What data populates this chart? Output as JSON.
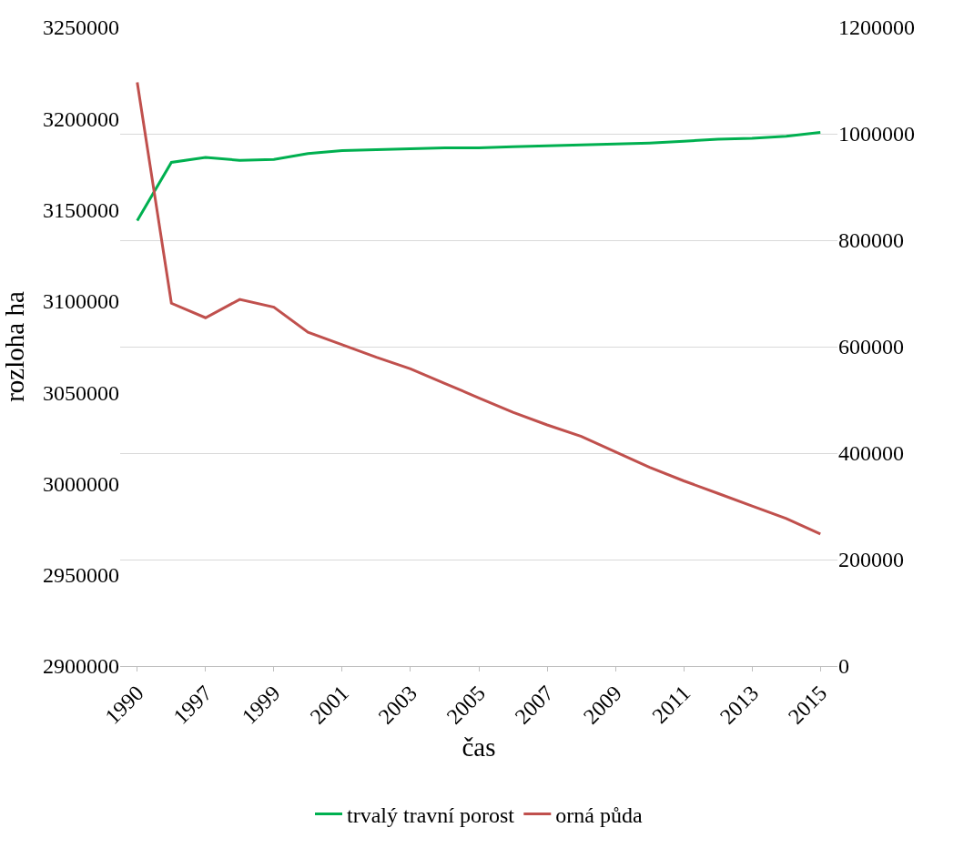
{
  "chart_data": {
    "type": "line",
    "xlabel": "čas",
    "ylabel": "rozloha ha",
    "categories": [
      "1990",
      null,
      "1997",
      null,
      "1999",
      null,
      "2001",
      null,
      "2003",
      null,
      "2005",
      null,
      "2007",
      null,
      "2009",
      null,
      "2011",
      null,
      "2013",
      null,
      "2015"
    ],
    "series": [
      {
        "name": "trvalý travní porost",
        "color": "#00b050",
        "values": [
          3144000,
          3176000,
          3178700,
          3177100,
          3177600,
          3180800,
          3182400,
          3182900,
          3183400,
          3184000,
          3184000,
          3184500,
          3185000,
          3185500,
          3186000,
          3186600,
          3187600,
          3188700,
          3189200,
          3190300,
          3192400
        ]
      },
      {
        "name": "orná půda",
        "color": "#c0504d",
        "axis": "y2",
        "values": [
          1096700,
          681500,
          654300,
          688700,
          674200,
          627100,
          603500,
          580000,
          558200,
          531000,
          503800,
          476600,
          453000,
          431300,
          402300,
          373300,
          347900,
          324300,
          300700,
          277200,
          248200
        ]
      }
    ],
    "ylim": [
      2900000,
      3250000
    ],
    "yticks": [
      2900000,
      2950000,
      3000000,
      3050000,
      3100000,
      3150000,
      3200000,
      3250000
    ],
    "y2lim": [
      0,
      1200000
    ],
    "y2ticks": [
      0,
      200000,
      400000,
      600000,
      800000,
      1000000,
      1200000
    ],
    "grid": "y",
    "legend": "bottom",
    "marker": "none",
    "line_style": "solid"
  }
}
